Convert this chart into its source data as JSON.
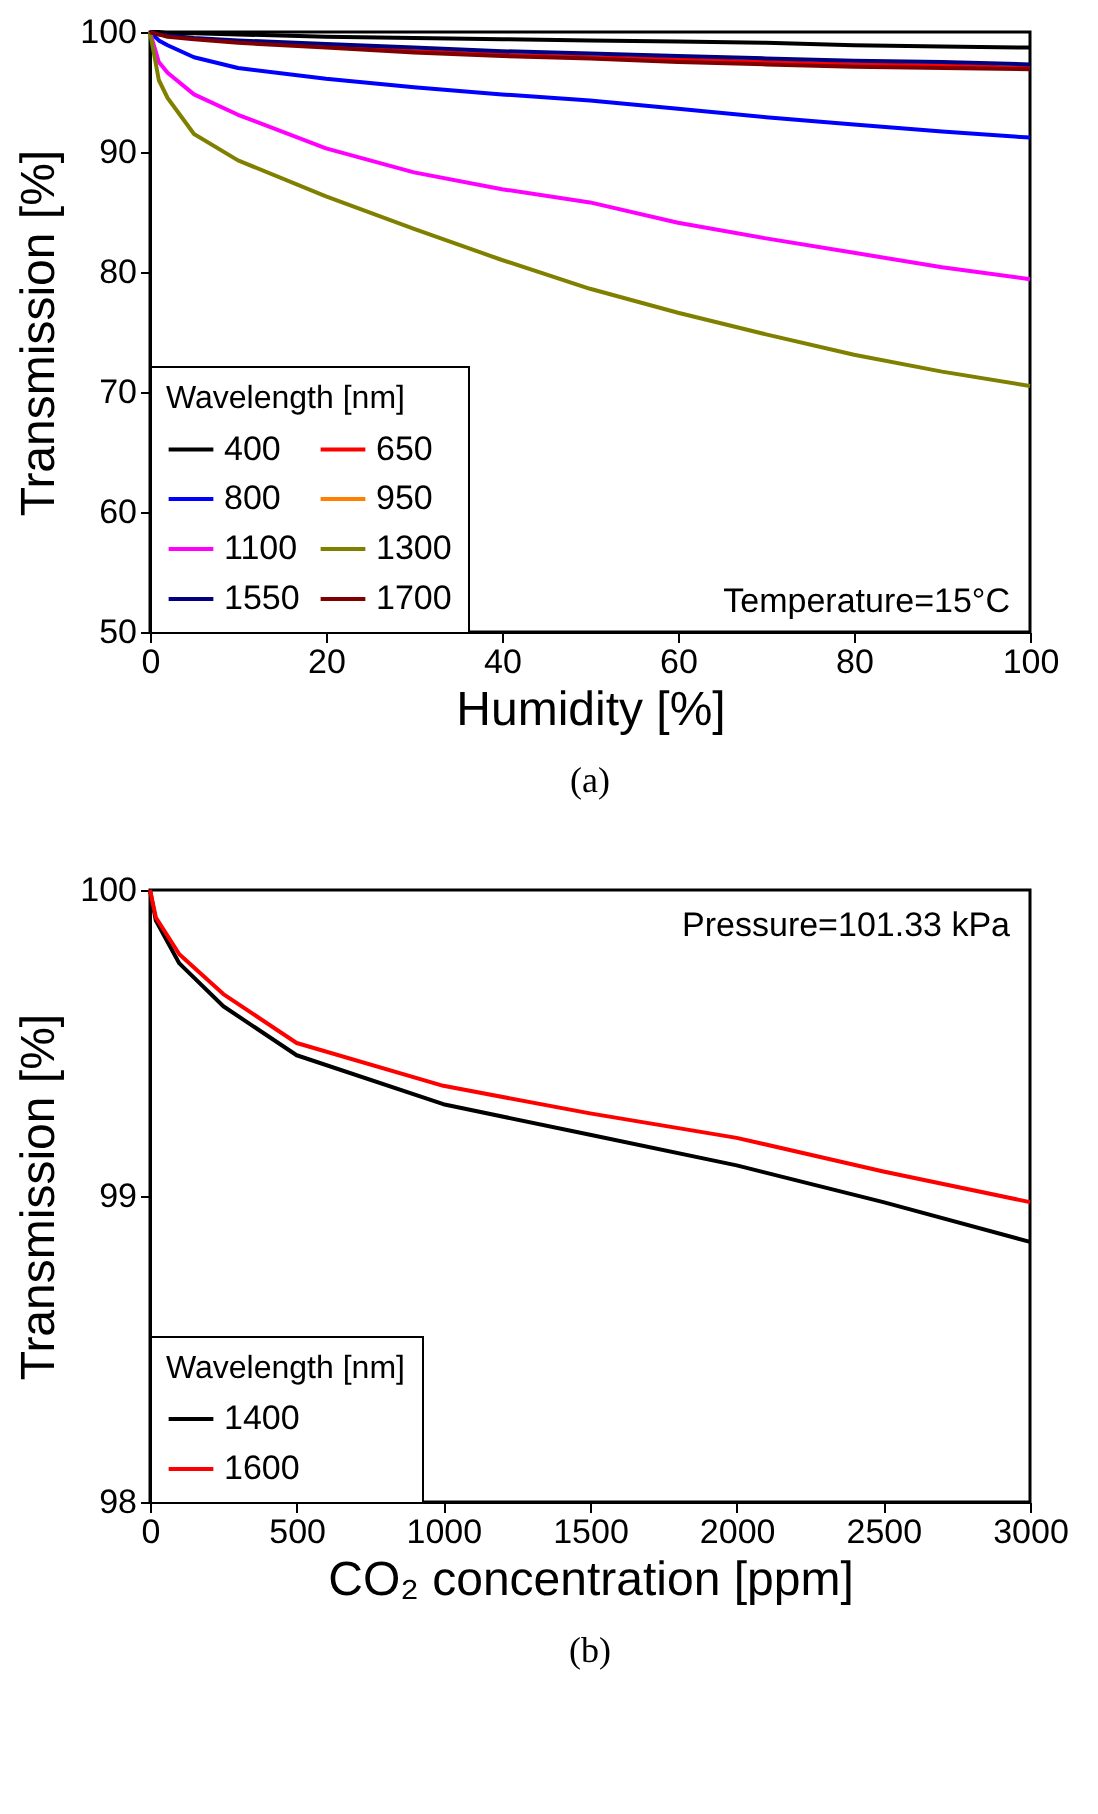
{
  "chart_data": [
    {
      "type": "line",
      "xlabel": "Humidity [%]",
      "ylabel": "Transmission [%]",
      "legend_title": "Wavelength [nm]",
      "legend": "bottom left",
      "grid": false,
      "xlim": [
        0,
        100
      ],
      "xticks": [
        0,
        20,
        40,
        60,
        80,
        100
      ],
      "ylim": [
        50,
        100
      ],
      "yticks": [
        50,
        60,
        70,
        80,
        90,
        100
      ],
      "x": [
        0,
        1,
        2,
        5,
        10,
        20,
        30,
        40,
        50,
        60,
        70,
        80,
        90,
        100
      ],
      "series": [
        {
          "name": "400",
          "color": "#000000",
          "values": [
            100,
            100,
            99.9,
            99.9,
            99.8,
            99.6,
            99.5,
            99.4,
            99.3,
            99.2,
            99.1,
            98.9,
            98.8,
            98.7
          ]
        },
        {
          "name": "650",
          "color": "#ff0000",
          "values": [
            null,
            null,
            null,
            null,
            null,
            98.8,
            98.4,
            98.1,
            97.9,
            97.7,
            97.5,
            97.3,
            97.2,
            97.0
          ]
        },
        {
          "name": "800",
          "color": "#0000ff",
          "values": [
            100,
            99.3,
            98.9,
            97.9,
            97.0,
            96.1,
            95.4,
            94.8,
            94.3,
            93.6,
            92.9,
            92.3,
            91.7,
            91.2
          ]
        },
        {
          "name": "950",
          "color": "#ff8000",
          "values": [
            null,
            null,
            null,
            null,
            null,
            null,
            null,
            null,
            null,
            null,
            null,
            null,
            null,
            null
          ]
        },
        {
          "name": "1100",
          "color": "#ff00ff",
          "values": [
            100,
            97.5,
            96.6,
            94.8,
            93.1,
            90.3,
            88.3,
            86.9,
            85.8,
            84.1,
            82.8,
            81.6,
            80.4,
            79.4
          ]
        },
        {
          "name": "1300",
          "color": "#808000",
          "values": [
            100,
            96,
            94.5,
            91.5,
            89.3,
            86.3,
            83.6,
            81,
            78.6,
            76.6,
            74.8,
            73.1,
            71.7,
            70.5
          ]
        },
        {
          "name": "1550",
          "color": "#000080",
          "values": [
            100,
            99.8,
            99.7,
            99.5,
            99.3,
            99.0,
            98.7,
            98.4,
            98.2,
            98.0,
            97.8,
            97.6,
            97.5,
            97.3
          ]
        },
        {
          "name": "1700",
          "color": "#800000",
          "values": [
            100,
            99.8,
            99.6,
            99.4,
            99.1,
            98.7,
            98.3,
            98.0,
            97.8,
            97.5,
            97.3,
            97.1,
            97.0,
            96.9
          ]
        }
      ],
      "annotations": [
        "Temperature=15°C",
        "(a)"
      ]
    },
    {
      "type": "line",
      "xlabel": "CO₂ concentration [ppm]",
      "ylabel": "Transmission [%]",
      "legend_title": "Wavelength [nm]",
      "legend": "bottom left",
      "grid": false,
      "xlim": [
        0,
        3000
      ],
      "xticks": [
        0,
        500,
        1000,
        1500,
        2000,
        2500,
        3000
      ],
      "ylim": [
        98,
        100
      ],
      "yticks": [
        98,
        99,
        100
      ],
      "x": [
        0,
        20,
        100,
        250,
        500,
        1000,
        1500,
        2000,
        2500,
        3000
      ],
      "series": [
        {
          "name": "1400",
          "color": "#000000",
          "values": [
            100,
            99.9,
            99.76,
            99.62,
            99.46,
            99.3,
            99.2,
            99.1,
            98.98,
            98.85
          ]
        },
        {
          "name": "1600",
          "color": "#ff0000",
          "values": [
            100,
            99.91,
            99.79,
            99.66,
            99.5,
            99.36,
            99.27,
            99.19,
            99.08,
            98.98
          ]
        }
      ],
      "annotations": [
        "Pressure=101.33 kPa",
        "(b)"
      ]
    }
  ]
}
